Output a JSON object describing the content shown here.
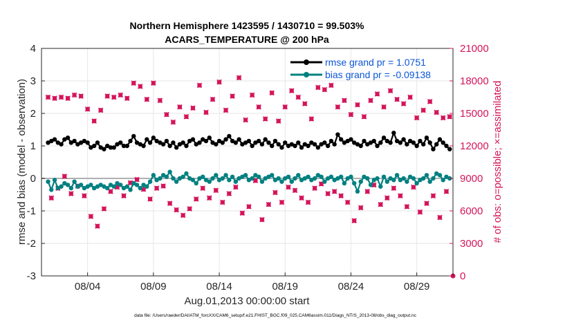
{
  "chart_data": {
    "type": "line",
    "title": "Northern Hemisphere 1423595 / 1430710 = 99.503%",
    "subtitle": "ACARS_TEMPERATURE @ 200 hPa",
    "xlabel": "Aug.01,2013 00:00:00 start",
    "ylabel_left": "rmse and bias (model - observation)",
    "ylabel_right": "# of obs: o=possible; ×=assimilated",
    "footnote": "data file: /Users/raeder/DAI/ATM_forcXX/CAM6_setup/f.e21.FHIST_BGC.f09_025.CAM6assim.011/Diags_NTrS_2013-08/obs_diag_output.nc",
    "xlim": [
      0.5,
      31.75
    ],
    "ylim_left": [
      -3,
      4
    ],
    "ylim_right": [
      0,
      21000
    ],
    "x_ticks": [
      {
        "value": 4,
        "label": "08/04"
      },
      {
        "value": 9,
        "label": "08/09"
      },
      {
        "value": 14,
        "label": "08/14"
      },
      {
        "value": 19,
        "label": "08/19"
      },
      {
        "value": 24,
        "label": "08/24"
      },
      {
        "value": 29,
        "label": "08/29"
      }
    ],
    "y_ticks_left": [
      -3,
      -2,
      -1,
      0,
      1,
      2,
      3,
      4
    ],
    "y_ticks_right": [
      0,
      3000,
      6000,
      9000,
      12000,
      15000,
      18000,
      21000
    ],
    "colors": {
      "rmse": "#000000",
      "bias": "#008080",
      "obs": "#d4145a",
      "zero_line": "#b0b0b0",
      "legend_text": "#0b55d9"
    },
    "legend": [
      {
        "label": "rmse grand pr = 1.0751"
      },
      {
        "label": "bias grand pr = -0.09138"
      }
    ],
    "series": [
      {
        "name": "rmse",
        "axis": "left",
        "x": [
          1.0,
          1.25,
          1.5,
          1.75,
          2.0,
          2.25,
          2.5,
          2.75,
          3.0,
          3.25,
          3.5,
          3.75,
          4.0,
          4.25,
          4.5,
          4.75,
          5.0,
          5.25,
          5.5,
          5.75,
          6.0,
          6.25,
          6.5,
          6.75,
          7.0,
          7.25,
          7.5,
          7.75,
          8.0,
          8.25,
          8.5,
          8.75,
          9.0,
          9.25,
          9.5,
          9.75,
          10.0,
          10.25,
          10.5,
          10.75,
          11.0,
          11.25,
          11.5,
          11.75,
          12.0,
          12.25,
          12.5,
          12.75,
          13.0,
          13.25,
          13.5,
          13.75,
          14.0,
          14.25,
          14.5,
          14.75,
          15.0,
          15.25,
          15.5,
          15.75,
          16.0,
          16.25,
          16.5,
          16.75,
          17.0,
          17.25,
          17.5,
          17.75,
          18.0,
          18.25,
          18.5,
          18.75,
          19.0,
          19.25,
          19.5,
          19.75,
          20.0,
          20.25,
          20.5,
          20.75,
          21.0,
          21.25,
          21.5,
          21.75,
          22.0,
          22.25,
          22.5,
          22.75,
          23.0,
          23.25,
          23.5,
          23.75,
          24.0,
          24.25,
          24.5,
          24.75,
          25.0,
          25.25,
          25.5,
          25.75,
          26.0,
          26.25,
          26.5,
          26.75,
          27.0,
          27.25,
          27.5,
          27.75,
          28.0,
          28.25,
          28.5,
          28.75,
          29.0,
          29.25,
          29.5,
          29.75,
          30.0,
          30.25,
          30.5,
          30.75,
          31.0,
          31.25,
          31.5
        ],
        "y": [
          1.1,
          1.15,
          1.2,
          1.1,
          1.05,
          1.2,
          1.25,
          1.1,
          1.15,
          1.05,
          1.1,
          1.15,
          1.1,
          0.95,
          1.0,
          1.1,
          0.95,
          0.9,
          1.0,
          0.95,
          0.95,
          1.05,
          1.1,
          1.0,
          1.0,
          1.15,
          1.3,
          1.1,
          1.05,
          1.0,
          1.2,
          1.1,
          1.25,
          1.15,
          1.1,
          1.05,
          1.15,
          1.0,
          1.1,
          0.95,
          1.05,
          1.1,
          1.0,
          1.15,
          1.2,
          1.05,
          1.1,
          1.2,
          1.15,
          1.25,
          1.1,
          1.05,
          1.15,
          1.1,
          1.2,
          1.3,
          1.15,
          1.1,
          1.2,
          1.05,
          1.1,
          1.15,
          1.0,
          1.1,
          1.15,
          1.05,
          1.2,
          1.1,
          1.0,
          1.15,
          1.05,
          0.95,
          1.1,
          1.0,
          1.05,
          1.0,
          1.1,
          0.95,
          1.05,
          1.0,
          1.1,
          1.05,
          0.95,
          1.05,
          1.1,
          1.0,
          1.15,
          1.05,
          1.35,
          1.2,
          1.1,
          1.15,
          1.2,
          1.1,
          1.05,
          1.0,
          1.15,
          1.05,
          1.1,
          1.15,
          1.0,
          1.1,
          1.25,
          1.15,
          1.1,
          1.4,
          1.15,
          1.1,
          1.2,
          1.05,
          1.15,
          1.1,
          1.0,
          1.15,
          1.05,
          1.25,
          1.1,
          0.9,
          1.05,
          1.2,
          1.1,
          1.0,
          0.9
        ]
      },
      {
        "name": "bias",
        "axis": "left",
        "x": [
          1.0,
          1.25,
          1.5,
          1.75,
          2.0,
          2.25,
          2.5,
          2.75,
          3.0,
          3.25,
          3.5,
          3.75,
          4.0,
          4.25,
          4.5,
          4.75,
          5.0,
          5.25,
          5.5,
          5.75,
          6.0,
          6.25,
          6.5,
          6.75,
          7.0,
          7.25,
          7.5,
          7.75,
          8.0,
          8.25,
          8.5,
          8.75,
          9.0,
          9.25,
          9.5,
          9.75,
          10.0,
          10.25,
          10.5,
          10.75,
          11.0,
          11.25,
          11.5,
          11.75,
          12.0,
          12.25,
          12.5,
          12.75,
          13.0,
          13.25,
          13.5,
          13.75,
          14.0,
          14.25,
          14.5,
          14.75,
          15.0,
          15.25,
          15.5,
          15.75,
          16.0,
          16.25,
          16.5,
          16.75,
          17.0,
          17.25,
          17.5,
          17.75,
          18.0,
          18.25,
          18.5,
          18.75,
          19.0,
          19.25,
          19.5,
          19.75,
          20.0,
          20.25,
          20.5,
          20.75,
          21.0,
          21.25,
          21.5,
          21.75,
          22.0,
          22.25,
          22.5,
          22.75,
          23.0,
          23.25,
          23.5,
          23.75,
          24.0,
          24.25,
          24.5,
          24.75,
          25.0,
          25.25,
          25.5,
          25.75,
          26.0,
          26.25,
          26.5,
          26.75,
          27.0,
          27.25,
          27.5,
          27.75,
          28.0,
          28.25,
          28.5,
          28.75,
          29.0,
          29.25,
          29.5,
          29.75,
          30.0,
          30.25,
          30.5,
          30.75,
          31.0,
          31.25,
          31.5
        ],
        "y": [
          -0.1,
          -0.35,
          -0.05,
          -0.3,
          -0.25,
          -0.15,
          -0.2,
          -0.3,
          -0.1,
          -0.25,
          -0.2,
          -0.3,
          -0.25,
          -0.2,
          -0.3,
          -0.25,
          -0.2,
          -0.25,
          -0.3,
          -0.2,
          -0.25,
          -0.15,
          -0.2,
          -0.3,
          -0.25,
          -0.35,
          -0.15,
          -0.2,
          -0.3,
          -0.2,
          -0.25,
          -0.1,
          0.1,
          -0.05,
          0.0,
          0.1,
          0.05,
          0.2,
          0.0,
          -0.1,
          0.0,
          0.05,
          0.15,
          0.0,
          -0.05,
          -0.15,
          0.0,
          0.05,
          -0.05,
          -0.1,
          0.0,
          0.1,
          -0.05,
          0.0,
          0.1,
          -0.05,
          0.05,
          -0.1,
          0.0,
          0.05,
          0.1,
          -0.05,
          0.0,
          0.1,
          0.05,
          -0.1,
          0.0,
          0.05,
          0.1,
          -0.05,
          0.0,
          -0.1,
          0.0,
          0.05,
          -0.1,
          0.0,
          0.1,
          -0.05,
          0.0,
          0.05,
          -0.05,
          0.0,
          0.1,
          0.05,
          -0.1,
          0.0,
          0.05,
          -0.05,
          0.0,
          0.05,
          -0.15,
          0.0,
          0.05,
          -0.15,
          -0.4,
          -0.1,
          0.05,
          0.0,
          -0.2,
          -0.05,
          0.0,
          -0.25,
          0.05,
          -0.1,
          0.0,
          -0.05,
          0.1,
          -0.05,
          0.0,
          -0.1,
          0.05,
          0.0,
          -0.15,
          -0.05,
          0.0,
          0.1,
          -0.1,
          0.0,
          0.15,
          0.1,
          -0.05,
          0.05,
          0.0
        ]
      },
      {
        "name": "obs_possible",
        "axis": "right",
        "x": [
          1.0,
          1.25,
          1.5,
          1.75,
          2.0,
          2.25,
          2.5,
          2.75,
          3.0,
          3.25,
          3.5,
          3.75,
          4.0,
          4.25,
          4.5,
          4.75,
          5.0,
          5.25,
          5.5,
          5.75,
          6.0,
          6.25,
          6.5,
          6.75,
          7.0,
          7.25,
          7.5,
          7.75,
          8.0,
          8.25,
          8.5,
          8.75,
          9.0,
          9.25,
          9.5,
          9.75,
          10.0,
          10.25,
          10.5,
          10.75,
          11.0,
          11.25,
          11.5,
          11.75,
          12.0,
          12.25,
          12.5,
          12.75,
          13.0,
          13.25,
          13.5,
          13.75,
          14.0,
          14.25,
          14.5,
          14.75,
          15.0,
          15.25,
          15.5,
          15.75,
          16.0,
          16.25,
          16.5,
          16.75,
          17.0,
          17.25,
          17.5,
          17.75,
          18.0,
          18.25,
          18.5,
          18.75,
          19.0,
          19.25,
          19.5,
          19.75,
          20.0,
          20.25,
          20.5,
          20.75,
          21.0,
          21.25,
          21.5,
          21.75,
          22.0,
          22.25,
          22.5,
          22.75,
          23.0,
          23.25,
          23.5,
          23.75,
          24.0,
          24.25,
          24.5,
          24.75,
          25.0,
          25.25,
          25.5,
          25.75,
          26.0,
          26.25,
          26.5,
          26.75,
          27.0,
          27.25,
          27.5,
          27.75,
          28.0,
          28.25,
          28.5,
          28.75,
          29.0,
          29.25,
          29.5,
          29.75,
          30.0,
          30.25,
          30.5,
          30.75,
          31.0,
          31.25,
          31.5
        ],
        "y": [
          16500,
          7200,
          16400,
          8100,
          16500,
          9200,
          16400,
          7600,
          16700,
          8300,
          16600,
          7400,
          15400,
          5500,
          14300,
          4600,
          15300,
          6200,
          16600,
          7800,
          16500,
          8200,
          16700,
          7400,
          16400,
          8600,
          17800,
          8900,
          17500,
          8000,
          16300,
          7100,
          17800,
          8100,
          16200,
          8300,
          14900,
          6700,
          14200,
          6100,
          15600,
          5600,
          14700,
          6200,
          15500,
          7100,
          17600,
          8100,
          15100,
          7200,
          16300,
          7900,
          17900,
          6800,
          15300,
          7600,
          16600,
          8200,
          18300,
          5800,
          14400,
          6400,
          16700,
          8800,
          15600,
          5200,
          14500,
          6600,
          16900,
          7700,
          14300,
          6800,
          15600,
          8200,
          17100,
          7900,
          16500,
          7200,
          15900,
          6800,
          14500,
          8100,
          17400,
          8500,
          17200,
          7600,
          17600,
          7800,
          15600,
          7400,
          16200,
          6800,
          14900,
          5100,
          15800,
          6300,
          14700,
          7800,
          16200,
          8400,
          16800,
          6600,
          15600,
          7200,
          17100,
          8100,
          16300,
          7400,
          15900,
          6400,
          16500,
          8200,
          14600,
          5900,
          15300,
          6700,
          16100,
          7400,
          15100,
          5400,
          14600,
          7800,
          14700
        ]
      },
      {
        "name": "obs_assimilated",
        "axis": "right",
        "x": [
          1.0,
          1.25,
          1.5,
          1.75,
          2.0,
          2.25,
          2.5,
          2.75,
          3.0,
          3.25,
          3.5,
          3.75,
          4.0,
          4.25,
          4.5,
          4.75,
          5.0,
          5.25,
          5.5,
          5.75,
          6.0,
          6.25,
          6.5,
          6.75,
          7.0,
          7.25,
          7.5,
          7.75,
          8.0,
          8.25,
          8.5,
          8.75,
          9.0,
          9.25,
          9.5,
          9.75,
          10.0,
          10.25,
          10.5,
          10.75,
          11.0,
          11.25,
          11.5,
          11.75,
          12.0,
          12.25,
          12.5,
          12.75,
          13.0,
          13.25,
          13.5,
          13.75,
          14.0,
          14.25,
          14.5,
          14.75,
          15.0,
          15.25,
          15.5,
          15.75,
          16.0,
          16.25,
          16.5,
          16.75,
          17.0,
          17.25,
          17.5,
          17.75,
          18.0,
          18.25,
          18.5,
          18.75,
          19.0,
          19.25,
          19.5,
          19.75,
          20.0,
          20.25,
          20.5,
          20.75,
          21.0,
          21.25,
          21.5,
          21.75,
          22.0,
          22.25,
          22.5,
          22.75,
          23.0,
          23.25,
          23.5,
          23.75,
          24.0,
          24.25,
          24.5,
          24.75,
          25.0,
          25.25,
          25.5,
          25.75,
          26.0,
          26.25,
          26.5,
          26.75,
          27.0,
          27.25,
          27.5,
          27.75,
          28.0,
          28.25,
          28.5,
          28.75,
          29.0,
          29.25,
          29.5,
          29.75,
          30.0,
          30.25,
          30.5,
          30.75,
          31.0,
          31.25,
          31.5
        ],
        "y": [
          16450,
          7150,
          16350,
          8050,
          16450,
          9150,
          16350,
          7550,
          16650,
          8250,
          16550,
          7350,
          15350,
          5450,
          14250,
          4550,
          15250,
          6150,
          16550,
          7750,
          16450,
          8150,
          16650,
          7350,
          16350,
          8550,
          17750,
          8850,
          17450,
          7950,
          16250,
          7050,
          17750,
          8050,
          16150,
          8250,
          14850,
          6650,
          14150,
          6050,
          15550,
          5550,
          14650,
          6150,
          15450,
          7050,
          17550,
          8050,
          15050,
          7150,
          16250,
          7850,
          17850,
          6750,
          15250,
          7550,
          16550,
          8150,
          18250,
          5750,
          14350,
          6350,
          16650,
          8750,
          15550,
          5150,
          14450,
          6550,
          16850,
          7650,
          14250,
          6750,
          15550,
          8150,
          17050,
          7850,
          16450,
          7150,
          15850,
          6750,
          14450,
          8050,
          17350,
          8450,
          17150,
          7550,
          17550,
          7750,
          15550,
          7350,
          16150,
          6750,
          14850,
          5050,
          15750,
          6250,
          14650,
          7750,
          16150,
          8350,
          16750,
          6550,
          15550,
          7150,
          17050,
          8050,
          16250,
          7350,
          15850,
          6350,
          16450,
          8150,
          14550,
          5850,
          15250,
          6650,
          16050,
          7350,
          15050,
          5350,
          14550,
          7750,
          14650
        ]
      }
    ],
    "annotations": [
      {
        "name": "obs-at-zero",
        "x": 31.75,
        "y": 0,
        "axis": "right"
      }
    ]
  }
}
